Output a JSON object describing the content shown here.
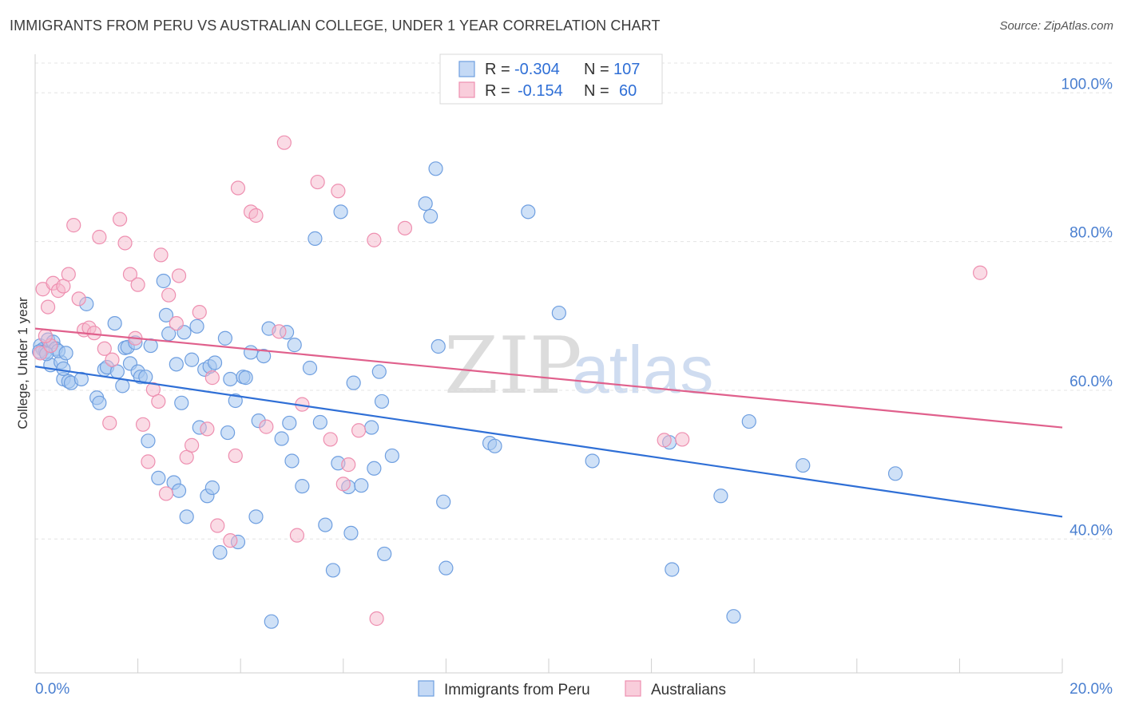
{
  "title": "IMMIGRANTS FROM PERU VS AUSTRALIAN COLLEGE, UNDER 1 YEAR CORRELATION CHART",
  "source": "Source: ZipAtlas.com",
  "watermark": {
    "part1": "ZIP",
    "part2": "atlas"
  },
  "legend_top": {
    "r_label": "R =",
    "n_label": "N =",
    "rows": [
      {
        "r": "-0.304",
        "n": "107"
      },
      {
        "r": "-0.154",
        "n": "60"
      }
    ]
  },
  "colors": {
    "blue_fill": "#a8c8f0",
    "blue_stroke": "#6f9fe0",
    "blue_line": "#2f6fd6",
    "pink_fill": "#f6b8cc",
    "pink_stroke": "#ee8fb0",
    "pink_line": "#e0608c",
    "accent_text": "#4a7fd0"
  },
  "chart_data": {
    "type": "scatter",
    "title": "IMMIGRANTS FROM PERU VS AUSTRALIAN COLLEGE, UNDER 1 YEAR CORRELATION CHART",
    "xlabel": "",
    "ylabel": "College, Under 1 year",
    "xlim": [
      0,
      20
    ],
    "ylim": [
      22,
      104
    ],
    "x_ticks": [
      "0.0%",
      "20.0%"
    ],
    "y_ticks": [
      {
        "value": 40,
        "label": "40.0%"
      },
      {
        "value": 60,
        "label": "60.0%"
      },
      {
        "value": 80,
        "label": "80.0%"
      },
      {
        "value": 100,
        "label": "100.0%"
      }
    ],
    "grid": true,
    "legend_position": "bottom",
    "series": [
      {
        "name": "Immigrants from Peru",
        "color": "blue",
        "r": -0.304,
        "n": 107,
        "trend": [
          [
            0,
            63.2
          ],
          [
            20,
            43.0
          ]
        ],
        "points": [
          [
            0.1,
            66.0
          ],
          [
            0.15,
            65.5
          ],
          [
            0.2,
            65.2
          ],
          [
            0.25,
            66.8
          ],
          [
            0.35,
            66.5
          ],
          [
            0.3,
            63.4
          ],
          [
            0.4,
            65.6
          ],
          [
            0.5,
            63.8
          ],
          [
            0.45,
            65.3
          ],
          [
            0.55,
            61.5
          ],
          [
            0.6,
            65.0
          ],
          [
            0.65,
            61.2
          ],
          [
            0.7,
            61.0
          ],
          [
            1.0,
            71.6
          ],
          [
            0.9,
            61.5
          ],
          [
            1.2,
            59.0
          ],
          [
            1.25,
            58.3
          ],
          [
            1.35,
            62.8
          ],
          [
            1.4,
            63.1
          ],
          [
            1.55,
            69.0
          ],
          [
            1.6,
            62.5
          ],
          [
            1.7,
            60.6
          ],
          [
            1.75,
            65.7
          ],
          [
            1.8,
            65.8
          ],
          [
            1.85,
            63.6
          ],
          [
            1.95,
            66.4
          ],
          [
            2.0,
            62.5
          ],
          [
            2.05,
            61.8
          ],
          [
            2.15,
            61.8
          ],
          [
            2.25,
            66.0
          ],
          [
            2.2,
            53.2
          ],
          [
            2.4,
            48.2
          ],
          [
            2.5,
            74.7
          ],
          [
            2.55,
            70.1
          ],
          [
            2.6,
            67.6
          ],
          [
            2.7,
            47.6
          ],
          [
            2.75,
            63.5
          ],
          [
            2.8,
            46.5
          ],
          [
            2.85,
            58.3
          ],
          [
            2.9,
            67.8
          ],
          [
            2.95,
            43.0
          ],
          [
            3.05,
            64.1
          ],
          [
            3.15,
            68.6
          ],
          [
            3.2,
            55.0
          ],
          [
            3.3,
            62.8
          ],
          [
            3.35,
            45.8
          ],
          [
            3.4,
            63.2
          ],
          [
            3.45,
            46.9
          ],
          [
            3.5,
            63.7
          ],
          [
            3.6,
            38.2
          ],
          [
            3.7,
            67.0
          ],
          [
            3.75,
            54.3
          ],
          [
            3.8,
            61.5
          ],
          [
            3.9,
            58.6
          ],
          [
            3.95,
            39.6
          ],
          [
            4.05,
            61.8
          ],
          [
            4.1,
            61.7
          ],
          [
            4.2,
            65.1
          ],
          [
            4.3,
            43.0
          ],
          [
            4.35,
            55.9
          ],
          [
            4.45,
            64.6
          ],
          [
            4.55,
            68.3
          ],
          [
            4.6,
            28.9
          ],
          [
            4.8,
            53.5
          ],
          [
            4.9,
            67.8
          ],
          [
            4.95,
            55.6
          ],
          [
            5.0,
            50.5
          ],
          [
            5.05,
            66.1
          ],
          [
            5.2,
            47.1
          ],
          [
            5.35,
            63.0
          ],
          [
            5.45,
            80.4
          ],
          [
            5.55,
            55.7
          ],
          [
            5.65,
            41.9
          ],
          [
            5.8,
            35.8
          ],
          [
            5.9,
            50.2
          ],
          [
            5.95,
            84.0
          ],
          [
            6.1,
            47.0
          ],
          [
            6.15,
            40.8
          ],
          [
            6.2,
            61.0
          ],
          [
            6.35,
            47.2
          ],
          [
            6.55,
            55.0
          ],
          [
            6.6,
            49.5
          ],
          [
            6.7,
            62.5
          ],
          [
            6.75,
            58.5
          ],
          [
            6.8,
            38.0
          ],
          [
            6.95,
            51.2
          ],
          [
            7.6,
            85.1
          ],
          [
            7.7,
            83.4
          ],
          [
            7.8,
            89.8
          ],
          [
            7.85,
            65.9
          ],
          [
            7.95,
            45.0
          ],
          [
            8.0,
            36.1
          ],
          [
            8.85,
            52.9
          ],
          [
            8.95,
            52.5
          ],
          [
            9.6,
            84.0
          ],
          [
            10.2,
            70.4
          ],
          [
            10.85,
            50.5
          ],
          [
            12.35,
            53.0
          ],
          [
            12.4,
            35.9
          ],
          [
            13.35,
            45.8
          ],
          [
            13.6,
            29.6
          ],
          [
            13.9,
            55.8
          ],
          [
            14.95,
            49.9
          ],
          [
            16.75,
            48.8
          ],
          [
            0.08,
            65.2
          ],
          [
            0.22,
            64.9
          ],
          [
            0.55,
            62.9
          ]
        ]
      },
      {
        "name": "Australians",
        "color": "pink",
        "r": -0.154,
        "n": 60,
        "trend": [
          [
            0,
            68.3
          ],
          [
            20,
            55.0
          ]
        ],
        "points": [
          [
            0.1,
            65.0
          ],
          [
            0.15,
            73.6
          ],
          [
            0.25,
            71.2
          ],
          [
            0.3,
            66.0
          ],
          [
            0.35,
            74.4
          ],
          [
            0.45,
            73.4
          ],
          [
            0.55,
            74.0
          ],
          [
            0.65,
            75.6
          ],
          [
            0.75,
            82.2
          ],
          [
            0.85,
            72.3
          ],
          [
            0.95,
            68.1
          ],
          [
            1.05,
            68.4
          ],
          [
            1.15,
            67.7
          ],
          [
            1.25,
            80.6
          ],
          [
            1.35,
            65.6
          ],
          [
            1.45,
            55.6
          ],
          [
            1.5,
            64.1
          ],
          [
            1.65,
            83.0
          ],
          [
            1.75,
            79.8
          ],
          [
            1.85,
            75.6
          ],
          [
            1.95,
            67.0
          ],
          [
            2.0,
            74.2
          ],
          [
            2.1,
            55.4
          ],
          [
            2.2,
            50.4
          ],
          [
            2.3,
            60.1
          ],
          [
            2.4,
            58.5
          ],
          [
            2.45,
            78.2
          ],
          [
            2.55,
            46.1
          ],
          [
            2.6,
            72.8
          ],
          [
            2.75,
            69.0
          ],
          [
            2.8,
            75.4
          ],
          [
            2.95,
            51.0
          ],
          [
            3.05,
            52.6
          ],
          [
            3.2,
            70.5
          ],
          [
            3.35,
            54.8
          ],
          [
            3.45,
            61.7
          ],
          [
            3.55,
            41.8
          ],
          [
            3.8,
            39.8
          ],
          [
            3.9,
            51.2
          ],
          [
            3.95,
            87.2
          ],
          [
            4.2,
            84.0
          ],
          [
            4.3,
            83.5
          ],
          [
            4.5,
            55.1
          ],
          [
            4.75,
            67.9
          ],
          [
            4.85,
            93.3
          ],
          [
            5.1,
            40.5
          ],
          [
            5.2,
            58.1
          ],
          [
            5.5,
            88.0
          ],
          [
            5.75,
            53.4
          ],
          [
            5.9,
            86.8
          ],
          [
            6.0,
            47.4
          ],
          [
            6.1,
            50.0
          ],
          [
            6.3,
            54.6
          ],
          [
            6.6,
            80.2
          ],
          [
            6.65,
            29.3
          ],
          [
            7.2,
            81.8
          ],
          [
            12.25,
            53.3
          ],
          [
            12.6,
            53.4
          ],
          [
            18.4,
            75.8
          ],
          [
            0.2,
            67.3
          ]
        ]
      }
    ]
  },
  "bottom_legend": [
    "Immigrants from Peru",
    "Australians"
  ]
}
